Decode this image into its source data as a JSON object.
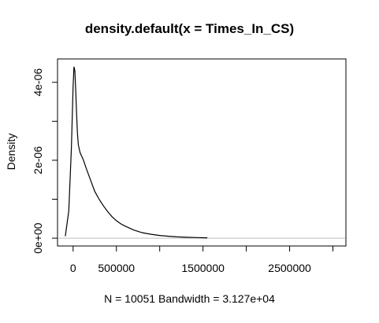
{
  "chart_data": {
    "type": "line",
    "title": "density.default(x = Times_In_CS)",
    "xlabel": "N = 10051   Bandwidth = 3.127e+04",
    "ylabel": "Density",
    "xlim": [
      -180000,
      3150000
    ],
    "ylim": [
      -2e-07,
      4.6e-06
    ],
    "x_ticks": [
      0,
      500000,
      1000000,
      1500000,
      2000000,
      2500000,
      3000000
    ],
    "x_tick_labels": [
      "0",
      "500000",
      "",
      "1500000",
      "",
      "2500000",
      ""
    ],
    "y_ticks": [
      0,
      1e-06,
      2e-06,
      3e-06,
      4e-06
    ],
    "y_tick_labels": [
      "0e+00",
      "",
      "2e-06",
      "",
      "4e-06"
    ],
    "baseline_color": "#bebebe",
    "series": [
      {
        "x": [
          -90000,
          -50000,
          -20000,
          0,
          10000,
          20000,
          30000,
          40000,
          50000,
          60000,
          80000,
          100000,
          120000,
          150000,
          200000,
          250000,
          300000,
          350000,
          400000,
          450000,
          500000,
          550000,
          600000,
          700000,
          800000,
          900000,
          1000000,
          1100000,
          1200000,
          1300000,
          1400000,
          1500000,
          1550000
        ],
        "y": [
          5e-08,
          7e-07,
          2.3e-06,
          3.9e-06,
          4.4e-06,
          4.3e-06,
          3.8e-06,
          3.2e-06,
          2.7e-06,
          2.4e-06,
          2.2e-06,
          2.1e-06,
          2e-06,
          1.8e-06,
          1.5e-06,
          1.2e-06,
          1e-06,
          8.3e-07,
          6.8e-07,
          5.5e-07,
          4.5e-07,
          3.7e-07,
          3.1e-07,
          2.1e-07,
          1.4e-07,
          1e-07,
          7e-08,
          5e-08,
          3.5e-08,
          2.5e-08,
          1.8e-08,
          1.2e-08,
          1e-08
        ]
      }
    ]
  }
}
